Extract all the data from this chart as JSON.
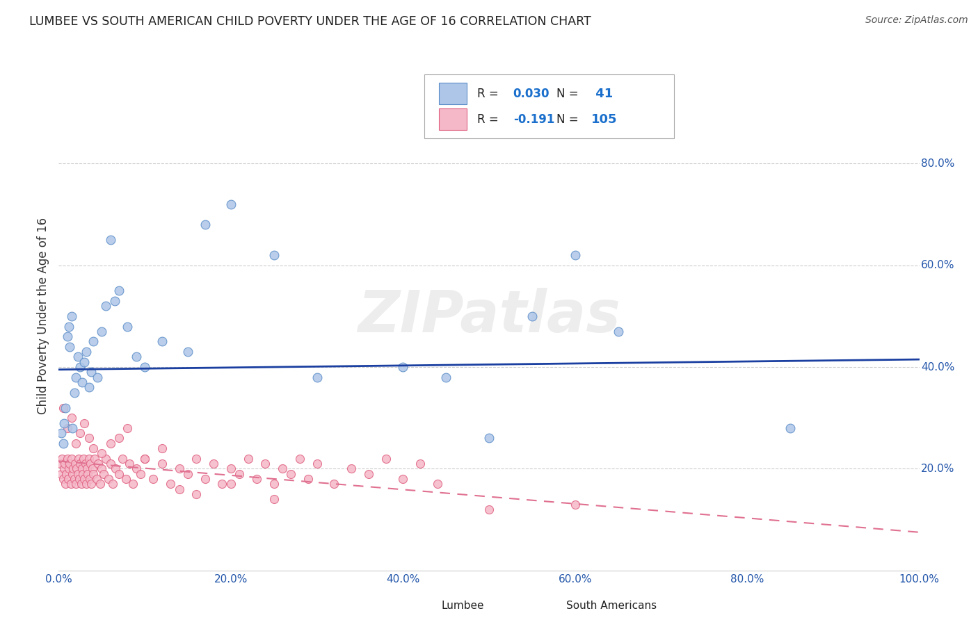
{
  "title": "LUMBEE VS SOUTH AMERICAN CHILD POVERTY UNDER THE AGE OF 16 CORRELATION CHART",
  "source": "Source: ZipAtlas.com",
  "ylabel": "Child Poverty Under the Age of 16",
  "xlim": [
    0,
    1.0
  ],
  "ylim": [
    0,
    1.0
  ],
  "xticklabels": [
    "0.0%",
    "20.0%",
    "40.0%",
    "60.0%",
    "80.0%",
    "100.0%"
  ],
  "yticklabels_right": [
    "20.0%",
    "40.0%",
    "60.0%",
    "80.0%"
  ],
  "watermark": "ZIPatlas",
  "lumbee_color": "#aec6e8",
  "lumbee_edge_color": "#5b8dc8",
  "south_american_color": "#f5b8c8",
  "south_american_edge_color": "#e06080",
  "trendline_lumbee_color": "#1a3fa0",
  "trendline_sa_color": "#e07090",
  "R_lumbee": 0.03,
  "N_lumbee": 41,
  "R_sa": -0.191,
  "N_sa": 105,
  "legend_R_color": "#1a6fcc",
  "lumbee_x": [
    0.003,
    0.005,
    0.006,
    0.008,
    0.01,
    0.012,
    0.013,
    0.015,
    0.016,
    0.018,
    0.02,
    0.022,
    0.025,
    0.027,
    0.03,
    0.032,
    0.035,
    0.038,
    0.04,
    0.045,
    0.05,
    0.055,
    0.06,
    0.065,
    0.07,
    0.08,
    0.09,
    0.1,
    0.12,
    0.15,
    0.17,
    0.2,
    0.25,
    0.3,
    0.4,
    0.45,
    0.5,
    0.55,
    0.6,
    0.65,
    0.85
  ],
  "lumbee_y": [
    0.27,
    0.25,
    0.29,
    0.32,
    0.46,
    0.48,
    0.44,
    0.5,
    0.28,
    0.35,
    0.38,
    0.42,
    0.4,
    0.37,
    0.41,
    0.43,
    0.36,
    0.39,
    0.45,
    0.38,
    0.47,
    0.52,
    0.65,
    0.53,
    0.55,
    0.48,
    0.42,
    0.4,
    0.45,
    0.43,
    0.68,
    0.72,
    0.62,
    0.38,
    0.4,
    0.38,
    0.26,
    0.5,
    0.62,
    0.47,
    0.28
  ],
  "sa_x": [
    0.002,
    0.003,
    0.004,
    0.005,
    0.006,
    0.007,
    0.008,
    0.009,
    0.01,
    0.011,
    0.012,
    0.013,
    0.014,
    0.015,
    0.016,
    0.017,
    0.018,
    0.019,
    0.02,
    0.021,
    0.022,
    0.023,
    0.024,
    0.025,
    0.026,
    0.027,
    0.028,
    0.029,
    0.03,
    0.031,
    0.032,
    0.033,
    0.034,
    0.035,
    0.036,
    0.037,
    0.038,
    0.039,
    0.04,
    0.042,
    0.044,
    0.046,
    0.048,
    0.05,
    0.052,
    0.055,
    0.058,
    0.06,
    0.063,
    0.066,
    0.07,
    0.074,
    0.078,
    0.082,
    0.086,
    0.09,
    0.095,
    0.1,
    0.11,
    0.12,
    0.13,
    0.14,
    0.15,
    0.16,
    0.17,
    0.18,
    0.19,
    0.2,
    0.21,
    0.22,
    0.23,
    0.24,
    0.25,
    0.26,
    0.27,
    0.28,
    0.29,
    0.3,
    0.32,
    0.34,
    0.36,
    0.38,
    0.4,
    0.42,
    0.44,
    0.005,
    0.01,
    0.015,
    0.02,
    0.025,
    0.03,
    0.035,
    0.04,
    0.05,
    0.06,
    0.07,
    0.08,
    0.1,
    0.12,
    0.5,
    0.14,
    0.16,
    0.2,
    0.25,
    0.6
  ],
  "sa_y": [
    0.21,
    0.19,
    0.22,
    0.18,
    0.2,
    0.21,
    0.17,
    0.19,
    0.22,
    0.18,
    0.2,
    0.21,
    0.17,
    0.22,
    0.19,
    0.2,
    0.18,
    0.21,
    0.17,
    0.2,
    0.19,
    0.22,
    0.18,
    0.21,
    0.17,
    0.2,
    0.19,
    0.22,
    0.18,
    0.21,
    0.17,
    0.2,
    0.19,
    0.22,
    0.18,
    0.21,
    0.17,
    0.2,
    0.19,
    0.22,
    0.18,
    0.21,
    0.17,
    0.2,
    0.19,
    0.22,
    0.18,
    0.21,
    0.17,
    0.2,
    0.19,
    0.22,
    0.18,
    0.21,
    0.17,
    0.2,
    0.19,
    0.22,
    0.18,
    0.21,
    0.17,
    0.2,
    0.19,
    0.22,
    0.18,
    0.21,
    0.17,
    0.2,
    0.19,
    0.22,
    0.18,
    0.21,
    0.17,
    0.2,
    0.19,
    0.22,
    0.18,
    0.21,
    0.17,
    0.2,
    0.19,
    0.22,
    0.18,
    0.21,
    0.17,
    0.32,
    0.28,
    0.3,
    0.25,
    0.27,
    0.29,
    0.26,
    0.24,
    0.23,
    0.25,
    0.26,
    0.28,
    0.22,
    0.24,
    0.12,
    0.16,
    0.15,
    0.17,
    0.14,
    0.13
  ],
  "trendline_lumbee_x0": 0.0,
  "trendline_lumbee_x1": 1.0,
  "trendline_lumbee_y0": 0.395,
  "trendline_lumbee_y1": 0.415,
  "trendline_sa_x0": 0.0,
  "trendline_sa_x1": 1.0,
  "trendline_sa_y0": 0.215,
  "trendline_sa_y1": 0.075
}
